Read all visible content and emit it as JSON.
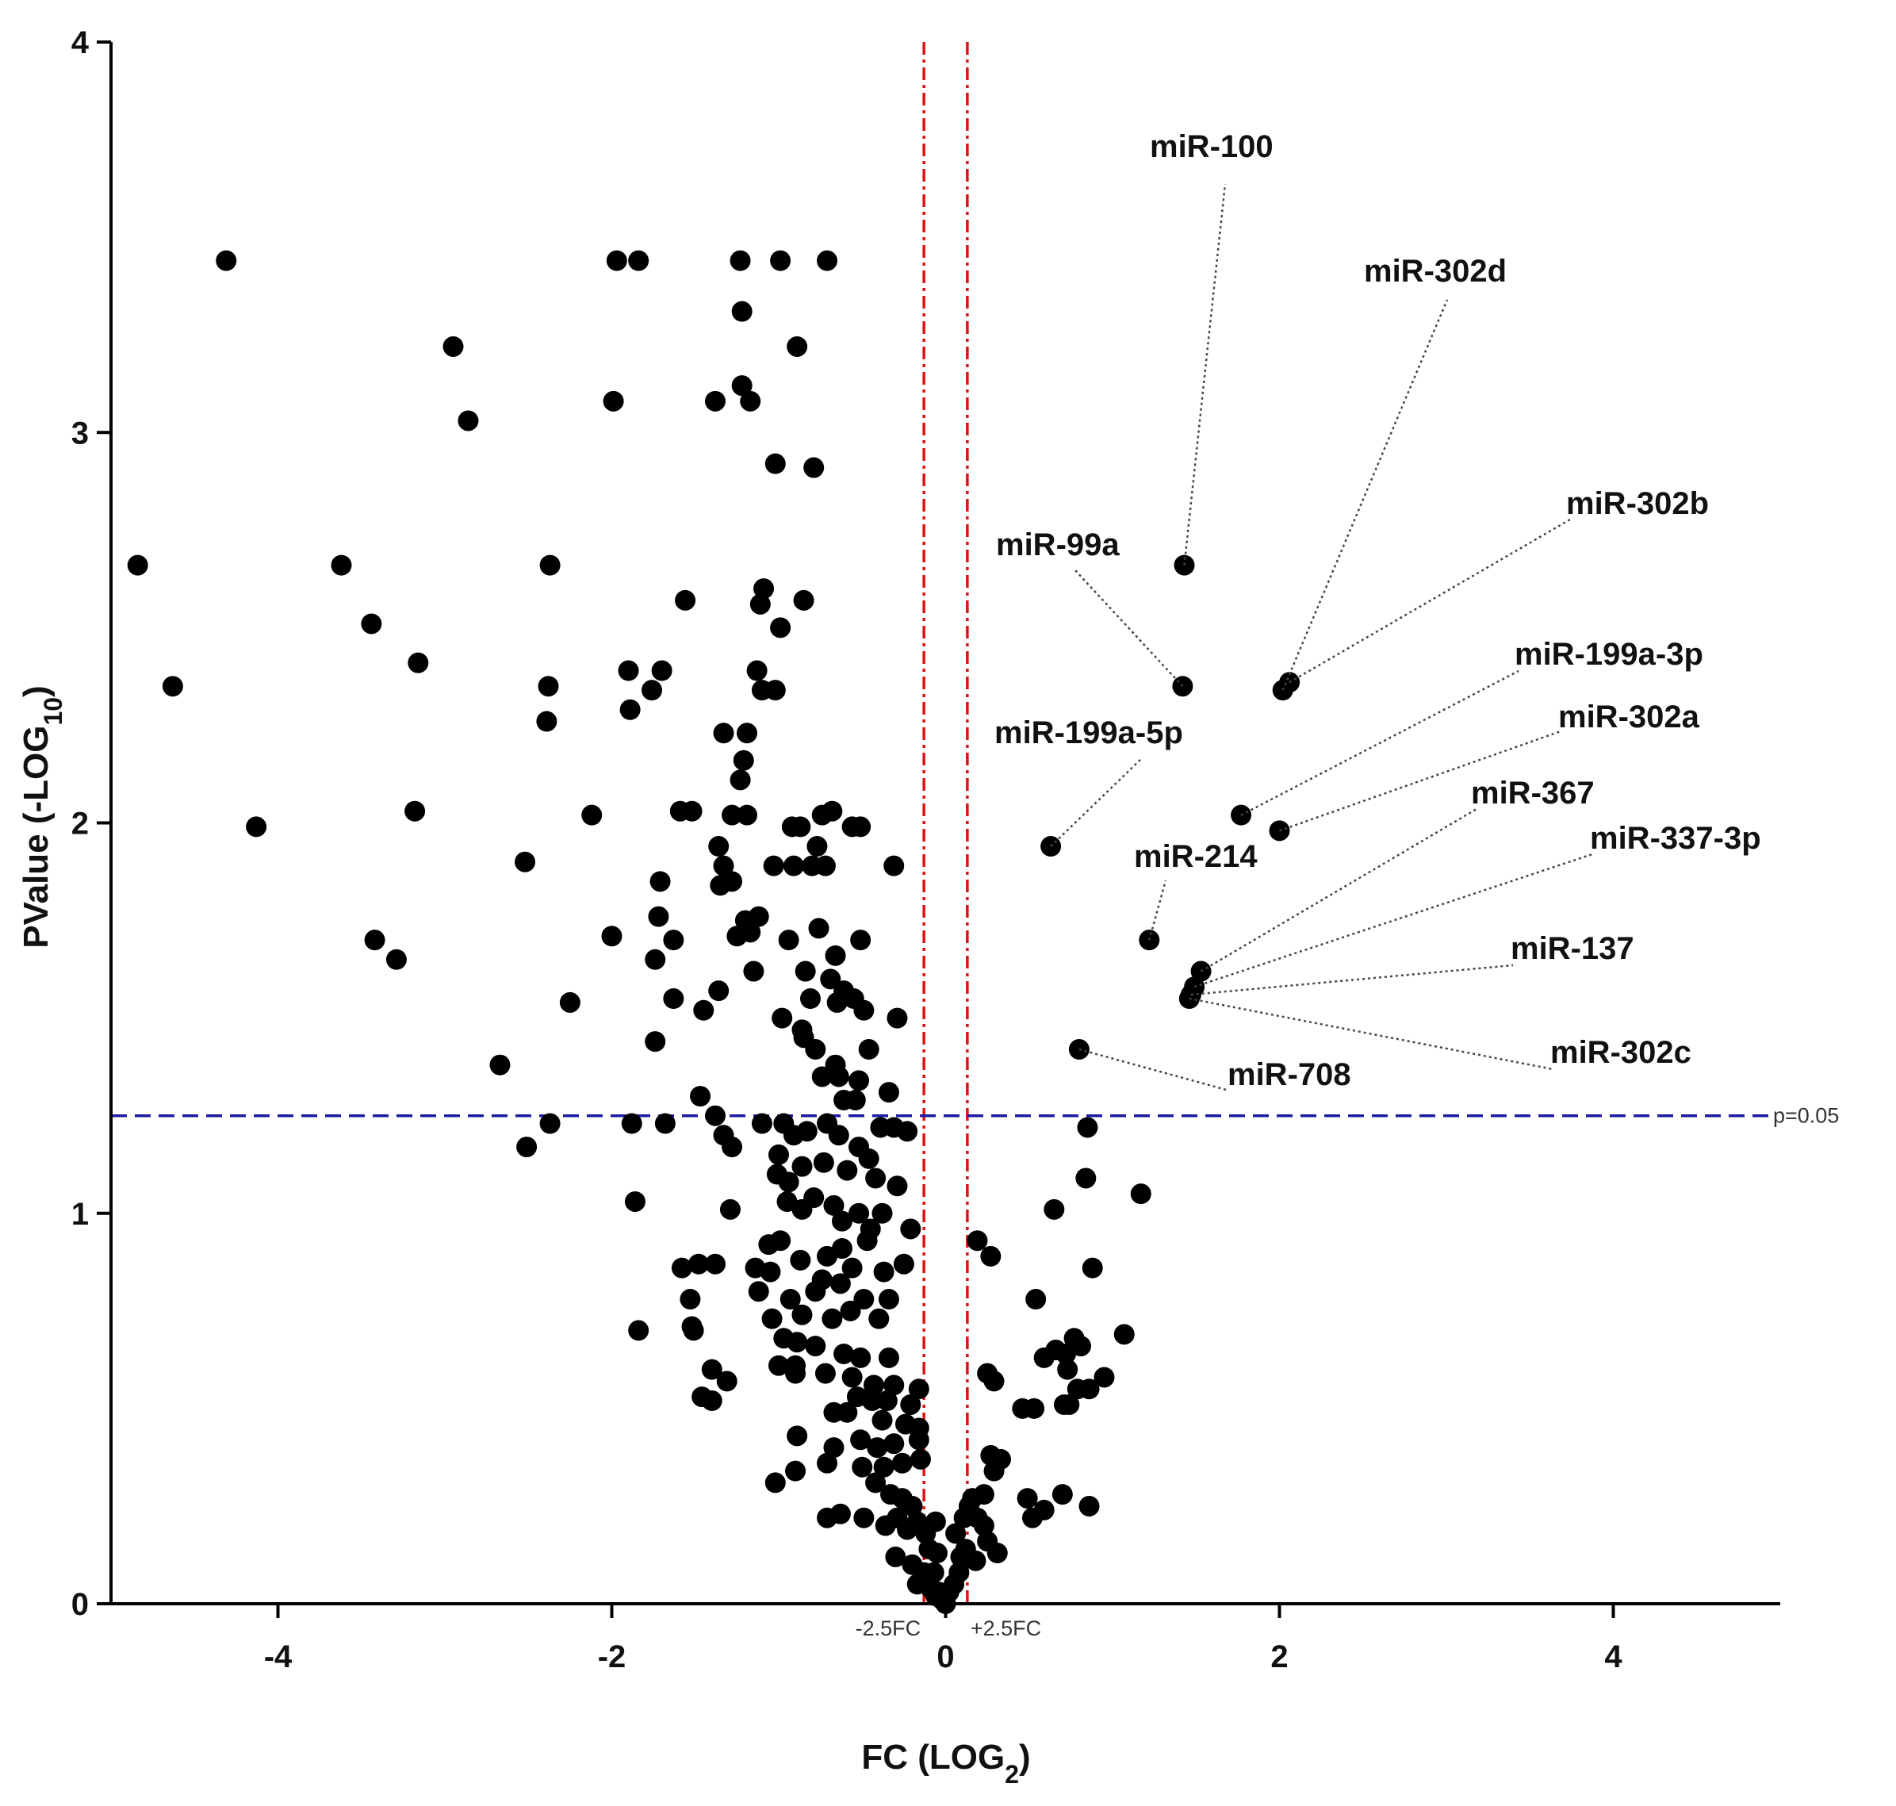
{
  "chart_data": {
    "type": "scatter",
    "title": "",
    "xlabel": "FC (LOG",
    "xlabel_sub": "2",
    "xlabel_end": ")",
    "ylabel": "PValue (-LOG",
    "ylabel_sub": "10",
    "ylabel_end": ")",
    "xlim": [
      -5,
      5
    ],
    "ylim": [
      0,
      4
    ],
    "x_ticks": [
      -4,
      -2,
      0,
      2,
      4
    ],
    "y_ticks": [
      0,
      1,
      2,
      3,
      4
    ],
    "x_tick_labels": [
      "-4",
      "-2",
      "0",
      "2",
      "4"
    ],
    "y_tick_labels": [
      "0",
      "1",
      "2",
      "3",
      "4"
    ],
    "threshold_lines": {
      "fc_low": {
        "x": -0.13,
        "label": "-2.5FC"
      },
      "fc_high": {
        "x": 0.13,
        "label": "+2.5FC"
      },
      "pvalue": {
        "y": 1.25,
        "label": "p=0.05"
      }
    },
    "annotations": [
      {
        "name": "miR-100",
        "x": 1.43,
        "y": 2.66
      },
      {
        "name": "miR-302d",
        "x": 2.02,
        "y": 2.34
      },
      {
        "name": "miR-302b",
        "x": 2.06,
        "y": 2.36
      },
      {
        "name": "miR-99a",
        "x": 1.42,
        "y": 2.35
      },
      {
        "name": "miR-199a-3p",
        "x": 1.77,
        "y": 2.02
      },
      {
        "name": "miR-302a",
        "x": 2.0,
        "y": 1.98
      },
      {
        "name": "miR-199a-5p",
        "x": 0.63,
        "y": 1.94
      },
      {
        "name": "miR-367",
        "x": 1.53,
        "y": 1.62
      },
      {
        "name": "miR-214",
        "x": 1.22,
        "y": 1.7
      },
      {
        "name": "miR-337-3p",
        "x": 1.49,
        "y": 1.58
      },
      {
        "name": "miR-137",
        "x": 1.47,
        "y": 1.56
      },
      {
        "name": "miR-302c",
        "x": 1.46,
        "y": 1.55
      },
      {
        "name": "miR-708",
        "x": 0.8,
        "y": 1.42
      }
    ],
    "points": [
      [
        -4.31,
        3.44
      ],
      [
        -1.97,
        3.44
      ],
      [
        -1.84,
        3.44
      ],
      [
        -1.23,
        3.44
      ],
      [
        -0.99,
        3.44
      ],
      [
        -0.71,
        3.44
      ],
      [
        -1.22,
        3.31
      ],
      [
        -2.95,
        3.22
      ],
      [
        -0.89,
        3.22
      ],
      [
        -1.99,
        3.08
      ],
      [
        -1.38,
        3.08
      ],
      [
        -1.22,
        3.12
      ],
      [
        -1.17,
        3.08
      ],
      [
        -2.86,
        3.03
      ],
      [
        -1.02,
        2.92
      ],
      [
        -0.79,
        2.91
      ],
      [
        -4.84,
        2.66
      ],
      [
        -3.62,
        2.66
      ],
      [
        -2.37,
        2.66
      ],
      [
        -1.56,
        2.57
      ],
      [
        -1.09,
        2.6
      ],
      [
        -1.11,
        2.56
      ],
      [
        -0.85,
        2.57
      ],
      [
        -0.99,
        2.5
      ],
      [
        -3.44,
        2.51
      ],
      [
        -3.16,
        2.41
      ],
      [
        -4.63,
        2.35
      ],
      [
        -2.38,
        2.35
      ],
      [
        -1.9,
        2.39
      ],
      [
        -1.76,
        2.34
      ],
      [
        -1.7,
        2.39
      ],
      [
        -1.13,
        2.39
      ],
      [
        -1.1,
        2.34
      ],
      [
        -1.02,
        2.34
      ],
      [
        -1.89,
        2.29
      ],
      [
        -2.39,
        2.26
      ],
      [
        -1.33,
        2.23
      ],
      [
        -1.19,
        2.23
      ],
      [
        -1.21,
        2.16
      ],
      [
        -1.23,
        2.11
      ],
      [
        -4.13,
        1.99
      ],
      [
        -3.18,
        2.03
      ],
      [
        -2.12,
        2.02
      ],
      [
        -1.59,
        2.03
      ],
      [
        -1.52,
        2.03
      ],
      [
        -1.28,
        2.02
      ],
      [
        -1.19,
        2.02
      ],
      [
        -0.92,
        1.99
      ],
      [
        -0.87,
        1.99
      ],
      [
        -0.74,
        2.02
      ],
      [
        -0.68,
        2.03
      ],
      [
        -0.56,
        1.99
      ],
      [
        -0.51,
        1.99
      ],
      [
        -1.36,
        1.94
      ],
      [
        -1.33,
        1.89
      ],
      [
        -1.35,
        1.84
      ],
      [
        -1.28,
        1.85
      ],
      [
        -0.77,
        1.94
      ],
      [
        -0.91,
        1.89
      ],
      [
        -0.8,
        1.89
      ],
      [
        -1.03,
        1.89
      ],
      [
        -0.72,
        1.89
      ],
      [
        -2.52,
        1.9
      ],
      [
        -0.31,
        1.89
      ],
      [
        -1.71,
        1.85
      ],
      [
        -1.2,
        1.75
      ],
      [
        -1.12,
        1.76
      ],
      [
        -1.25,
        1.71
      ],
      [
        -1.17,
        1.72
      ],
      [
        -1.72,
        1.76
      ],
      [
        -1.63,
        1.7
      ],
      [
        -2.0,
        1.71
      ],
      [
        -0.94,
        1.7
      ],
      [
        -0.76,
        1.73
      ],
      [
        -0.51,
        1.7
      ],
      [
        -3.42,
        1.7
      ],
      [
        -3.29,
        1.65
      ],
      [
        -1.74,
        1.65
      ],
      [
        -0.84,
        1.62
      ],
      [
        -0.66,
        1.66
      ],
      [
        -0.69,
        1.6
      ],
      [
        -1.15,
        1.62
      ],
      [
        -0.61,
        1.57
      ],
      [
        -0.65,
        1.54
      ],
      [
        -0.81,
        1.55
      ],
      [
        -0.55,
        1.55
      ],
      [
        -1.36,
        1.57
      ],
      [
        -0.49,
        1.52
      ],
      [
        -2.25,
        1.54
      ],
      [
        -1.63,
        1.55
      ],
      [
        -1.45,
        1.52
      ],
      [
        -0.98,
        1.5
      ],
      [
        -0.86,
        1.47
      ],
      [
        -0.29,
        1.5
      ],
      [
        -1.74,
        1.44
      ],
      [
        -0.85,
        1.45
      ],
      [
        -0.78,
        1.42
      ],
      [
        -0.46,
        1.42
      ],
      [
        -0.66,
        1.38
      ],
      [
        -2.67,
        1.38
      ],
      [
        -0.74,
        1.35
      ],
      [
        -0.64,
        1.35
      ],
      [
        -0.52,
        1.34
      ],
      [
        -1.47,
        1.3
      ],
      [
        -0.34,
        1.31
      ],
      [
        -0.54,
        1.29
      ],
      [
        -0.61,
        1.29
      ],
      [
        -2.37,
        1.23
      ],
      [
        -1.88,
        1.23
      ],
      [
        -1.68,
        1.23
      ],
      [
        -1.38,
        1.25
      ],
      [
        -1.33,
        1.2
      ],
      [
        -1.1,
        1.23
      ],
      [
        -0.97,
        1.23
      ],
      [
        -1.28,
        1.17
      ],
      [
        -2.51,
        1.17
      ],
      [
        -1.0,
        1.15
      ],
      [
        -0.91,
        1.2
      ],
      [
        -0.83,
        1.21
      ],
      [
        -0.71,
        1.23
      ],
      [
        -0.64,
        1.2
      ],
      [
        -0.52,
        1.17
      ],
      [
        -0.46,
        1.14
      ],
      [
        -0.39,
        1.22
      ],
      [
        -0.31,
        1.22
      ],
      [
        -0.23,
        1.21
      ],
      [
        -1.01,
        1.1
      ],
      [
        -0.94,
        1.08
      ],
      [
        -0.86,
        1.12
      ],
      [
        -0.73,
        1.13
      ],
      [
        -0.59,
        1.11
      ],
      [
        -0.42,
        1.09
      ],
      [
        -0.29,
        1.07
      ],
      [
        -0.95,
        1.03
      ],
      [
        -0.86,
        1.01
      ],
      [
        -0.79,
        1.04
      ],
      [
        -0.67,
        1.02
      ],
      [
        -0.52,
        1.0
      ],
      [
        -0.38,
        1.0
      ],
      [
        -1.86,
        1.03
      ],
      [
        -1.29,
        1.01
      ],
      [
        -0.62,
        0.98
      ],
      [
        -0.45,
        0.96
      ],
      [
        -0.21,
        0.96
      ],
      [
        -0.47,
        0.93
      ],
      [
        -1.06,
        0.92
      ],
      [
        -0.99,
        0.93
      ],
      [
        -0.87,
        0.88
      ],
      [
        -0.71,
        0.89
      ],
      [
        -0.62,
        0.91
      ],
      [
        -0.56,
        0.86
      ],
      [
        -1.14,
        0.86
      ],
      [
        -1.05,
        0.85
      ],
      [
        -0.74,
        0.83
      ],
      [
        -0.63,
        0.82
      ],
      [
        -0.37,
        0.85
      ],
      [
        -0.25,
        0.87
      ],
      [
        -1.58,
        0.86
      ],
      [
        -1.48,
        0.87
      ],
      [
        -1.38,
        0.87
      ],
      [
        -1.12,
        0.8
      ],
      [
        -0.93,
        0.78
      ],
      [
        -0.78,
        0.8
      ],
      [
        -0.57,
        0.75
      ],
      [
        -0.49,
        0.78
      ],
      [
        -0.34,
        0.78
      ],
      [
        -1.53,
        0.78
      ],
      [
        -1.52,
        0.71
      ],
      [
        -1.04,
        0.73
      ],
      [
        -0.86,
        0.74
      ],
      [
        -0.68,
        0.73
      ],
      [
        -0.4,
        0.73
      ],
      [
        -0.97,
        0.68
      ],
      [
        -0.89,
        0.67
      ],
      [
        -0.78,
        0.66
      ],
      [
        -0.61,
        0.64
      ],
      [
        -0.51,
        0.63
      ],
      [
        -0.34,
        0.63
      ],
      [
        -1.84,
        0.7
      ],
      [
        -1.51,
        0.7
      ],
      [
        -0.9,
        0.61
      ],
      [
        -0.72,
        0.59
      ],
      [
        -0.56,
        0.58
      ],
      [
        -0.43,
        0.56
      ],
      [
        -0.31,
        0.56
      ],
      [
        -1.0,
        0.61
      ],
      [
        -0.9,
        0.59
      ],
      [
        -0.53,
        0.53
      ],
      [
        -0.44,
        0.52
      ],
      [
        -0.35,
        0.52
      ],
      [
        -0.21,
        0.51
      ],
      [
        -0.16,
        0.55
      ],
      [
        -1.4,
        0.6
      ],
      [
        -1.31,
        0.57
      ],
      [
        -1.46,
        0.53
      ],
      [
        -1.4,
        0.52
      ],
      [
        -0.67,
        0.49
      ],
      [
        -0.59,
        0.49
      ],
      [
        -0.38,
        0.47
      ],
      [
        -0.24,
        0.46
      ],
      [
        -0.16,
        0.45
      ],
      [
        -0.89,
        0.43
      ],
      [
        -0.67,
        0.4
      ],
      [
        -0.51,
        0.42
      ],
      [
        -0.41,
        0.4
      ],
      [
        -0.31,
        0.41
      ],
      [
        -0.16,
        0.42
      ],
      [
        -0.71,
        0.36
      ],
      [
        -0.5,
        0.35
      ],
      [
        -0.37,
        0.35
      ],
      [
        -0.26,
        0.36
      ],
      [
        -0.15,
        0.37
      ],
      [
        -1.02,
        0.31
      ],
      [
        -0.9,
        0.34
      ],
      [
        -0.42,
        0.31
      ],
      [
        -0.33,
        0.28
      ],
      [
        -0.26,
        0.27
      ],
      [
        -0.2,
        0.25
      ],
      [
        -0.63,
        0.23
      ],
      [
        -0.49,
        0.22
      ],
      [
        -0.71,
        0.22
      ],
      [
        -0.36,
        0.2
      ],
      [
        -0.29,
        0.22
      ],
      [
        -0.23,
        0.19
      ],
      [
        -0.17,
        0.21
      ],
      [
        -0.12,
        0.18
      ],
      [
        -0.06,
        0.21
      ],
      [
        -0.1,
        0.14
      ],
      [
        -0.05,
        0.13
      ],
      [
        -0.3,
        0.12
      ],
      [
        -0.2,
        0.1
      ],
      [
        -0.13,
        0.08
      ],
      [
        -0.07,
        0.08
      ],
      [
        -0.17,
        0.05
      ],
      [
        -0.09,
        0.04
      ],
      [
        -0.04,
        0.03
      ],
      [
        -0.02,
        0.01
      ],
      [
        0.0,
        0.0
      ],
      [
        -0.06,
        0.02
      ],
      [
        0.02,
        0.03
      ],
      [
        0.05,
        0.05
      ],
      [
        0.08,
        0.08
      ],
      [
        0.09,
        0.12
      ],
      [
        0.12,
        0.14
      ],
      [
        0.06,
        0.18
      ],
      [
        0.11,
        0.22
      ],
      [
        0.14,
        0.25
      ],
      [
        0.19,
        0.22
      ],
      [
        0.23,
        0.2
      ],
      [
        0.25,
        0.16
      ],
      [
        0.31,
        0.13
      ],
      [
        0.18,
        0.11
      ],
      [
        0.29,
        0.34
      ],
      [
        0.27,
        0.38
      ],
      [
        0.33,
        0.37
      ],
      [
        0.23,
        0.28
      ],
      [
        0.16,
        0.27
      ],
      [
        0.49,
        0.27
      ],
      [
        0.52,
        0.22
      ],
      [
        0.59,
        0.24
      ],
      [
        0.7,
        0.28
      ],
      [
        0.86,
        0.25
      ],
      [
        0.25,
        0.59
      ],
      [
        0.29,
        0.57
      ],
      [
        0.46,
        0.5
      ],
      [
        0.53,
        0.5
      ],
      [
        0.59,
        0.63
      ],
      [
        0.66,
        0.65
      ],
      [
        0.73,
        0.6
      ],
      [
        0.71,
        0.51
      ],
      [
        0.79,
        0.55
      ],
      [
        0.86,
        0.55
      ],
      [
        0.95,
        0.58
      ],
      [
        0.72,
        0.64
      ],
      [
        0.81,
        0.66
      ],
      [
        0.77,
        0.68
      ],
      [
        1.07,
        0.69
      ],
      [
        0.74,
        0.51
      ],
      [
        0.54,
        0.78
      ],
      [
        0.19,
        0.93
      ],
      [
        0.27,
        0.89
      ],
      [
        0.88,
        0.86
      ],
      [
        0.65,
        1.01
      ],
      [
        0.84,
        1.09
      ],
      [
        1.17,
        1.05
      ],
      [
        0.85,
        1.22
      ]
    ]
  }
}
